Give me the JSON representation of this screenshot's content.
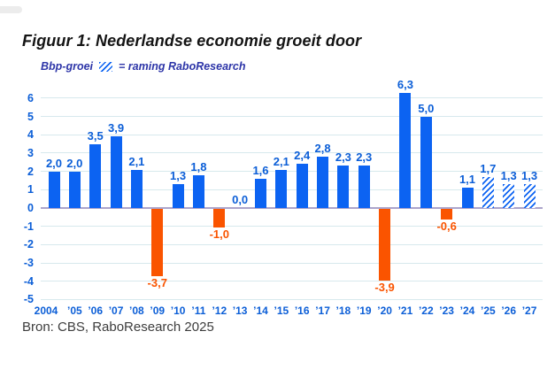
{
  "header": {
    "title": "Figuur 1: Nederlandse economie groeit door"
  },
  "legend": {
    "series_label": "Bbp-groei",
    "swatch_icon": "hatched-square-icon",
    "swatch_meaning": "= raming RaboResearch"
  },
  "footer": {
    "source": "Bron: CBS, RaboResearch 2025"
  },
  "colors": {
    "bar_positive": "#0c63f2",
    "bar_negative": "#fa5400",
    "axis_text": "#0b5ed7",
    "legend_text": "#2d35a8",
    "gridline": "#d7e9ed",
    "zero_line": "#aca4cb"
  },
  "chart_data": {
    "type": "bar",
    "title": "Figuur 1: Nederlandse economie groeit door",
    "series_name": "Bbp-groei",
    "forecast_note": "raming RaboResearch",
    "xlabel": "",
    "ylabel": "",
    "ylim": [
      -5,
      6
    ],
    "y_ticks": [
      6,
      5,
      4,
      3,
      2,
      1,
      0,
      -1,
      -2,
      -3,
      -4,
      -5
    ],
    "grid": true,
    "legend_position": "top-left",
    "categories": [
      "2004",
      "’05",
      "’06",
      "’07",
      "’08",
      "’09",
      "’10",
      "’11",
      "’12",
      "’13",
      "’14",
      "’15",
      "’16",
      "’17",
      "’18",
      "’19",
      "’20",
      "’21",
      "’22",
      "’23",
      "’24",
      "’25",
      "’26",
      "’27"
    ],
    "values": [
      2.0,
      2.0,
      3.5,
      3.9,
      2.1,
      -3.7,
      1.3,
      1.8,
      -1.0,
      0.0,
      1.6,
      2.1,
      2.4,
      2.8,
      2.3,
      2.3,
      -3.9,
      6.3,
      5.0,
      -0.6,
      1.1,
      1.7,
      1.3,
      1.3
    ],
    "value_labels": [
      "2,0",
      "2,0",
      "3,5",
      "3,9",
      "2,1",
      "-3,7",
      "1,3",
      "1,8",
      "-1,0",
      "0,0",
      "1,6",
      "2,1",
      "2,4",
      "2,8",
      "2,3",
      "2,3",
      "-3,9",
      "6,3",
      "5,0",
      "-0,6",
      "1,1",
      "1,7",
      "1,3",
      "1,3"
    ],
    "forecast": [
      false,
      false,
      false,
      false,
      false,
      false,
      false,
      false,
      false,
      false,
      false,
      false,
      false,
      false,
      false,
      false,
      false,
      false,
      false,
      false,
      false,
      true,
      true,
      true
    ]
  }
}
